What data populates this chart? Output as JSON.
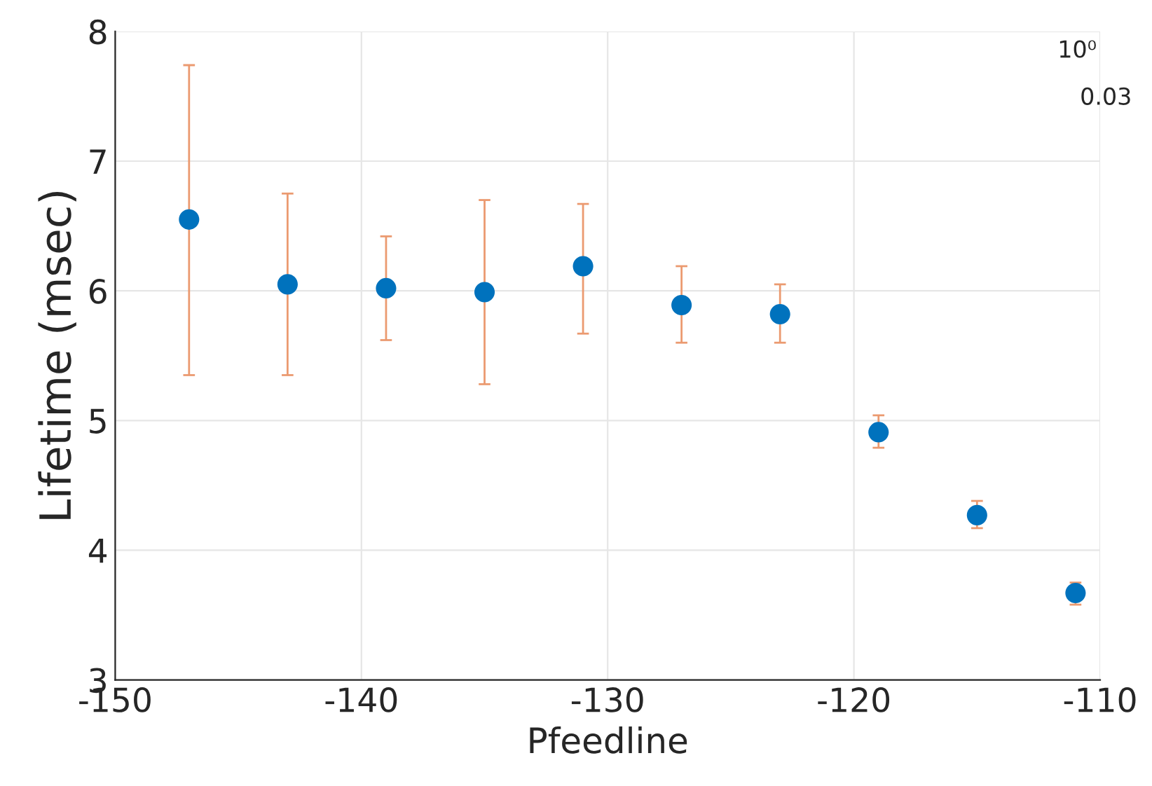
{
  "chart_data": {
    "type": "scatter",
    "xlabel": "Pfeedline",
    "ylabel": "Lifetime (msec)",
    "x": [
      -147,
      -143,
      -139,
      -135,
      -131,
      -127,
      -123,
      -119,
      -115,
      -111
    ],
    "series": [
      {
        "color": "#0072bd",
        "values": [
          6.55,
          6.05,
          6.02,
          5.99,
          6.19,
          5.89,
          5.82,
          4.91,
          4.27,
          3.67
        ],
        "errors": [
          [
            5.35,
            7.74
          ],
          [
            5.35,
            6.75
          ],
          [
            5.62,
            6.42
          ],
          [
            5.28,
            6.7
          ],
          [
            5.67,
            6.67
          ],
          [
            5.6,
            6.19
          ],
          [
            5.6,
            6.05
          ],
          [
            4.79,
            5.04
          ],
          [
            4.17,
            4.38
          ],
          [
            3.58,
            3.75
          ]
        ]
      }
    ],
    "xlim": [
      -150,
      -110
    ],
    "xticks": [
      -150,
      -140,
      -130,
      -120,
      -110
    ],
    "ylim": [
      3,
      8
    ],
    "yticks": [
      3,
      4,
      5,
      6,
      7,
      8
    ],
    "grid": true,
    "marker": "circle",
    "legend": false,
    "annotations": [
      "10⁰",
      "0.03"
    ]
  }
}
